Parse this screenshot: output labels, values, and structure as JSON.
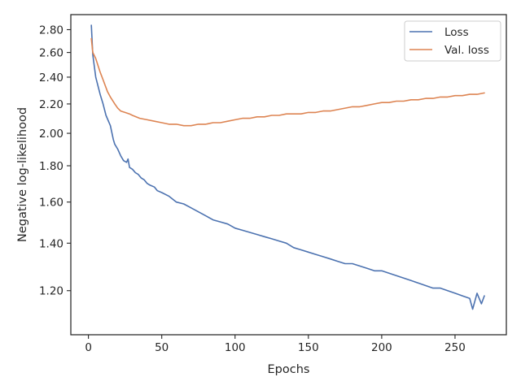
{
  "chart_data": {
    "type": "line",
    "title": "",
    "xlabel": "Epochs",
    "ylabel": "Negative log-likelihood",
    "xlim": [
      -12,
      285
    ],
    "ylim": [
      1.04,
      2.94
    ],
    "y_scale": "log",
    "x_ticks": [
      0,
      50,
      100,
      150,
      200,
      250
    ],
    "x_tick_labels": [
      "0",
      "50",
      "100",
      "150",
      "200",
      "250"
    ],
    "y_ticks": [
      1.2,
      1.4,
      1.6,
      1.8,
      2.0,
      2.2,
      2.4,
      2.6,
      2.8
    ],
    "y_tick_labels": [
      "1.20",
      "1.40",
      "1.60",
      "1.80",
      "2.00",
      "2.20",
      "2.40",
      "2.60",
      "2.80"
    ],
    "grid": false,
    "legend_position": "top-right",
    "series": [
      {
        "name": "Loss",
        "color": "#4c72b0",
        "x": [
          2,
          3,
          5,
          8,
          10,
          12,
          15,
          17,
          18,
          20,
          22,
          24,
          26,
          27,
          28,
          30,
          32,
          34,
          36,
          38,
          40,
          42,
          45,
          47,
          50,
          55,
          60,
          65,
          70,
          75,
          80,
          85,
          90,
          95,
          100,
          105,
          110,
          115,
          120,
          125,
          130,
          135,
          140,
          145,
          150,
          155,
          160,
          165,
          170,
          175,
          180,
          185,
          190,
          195,
          200,
          205,
          210,
          215,
          220,
          225,
          230,
          235,
          240,
          245,
          250,
          255,
          260,
          262,
          265,
          268,
          270
        ],
        "y": [
          2.84,
          2.58,
          2.4,
          2.27,
          2.2,
          2.12,
          2.05,
          1.96,
          1.93,
          1.9,
          1.86,
          1.83,
          1.82,
          1.84,
          1.79,
          1.78,
          1.76,
          1.75,
          1.73,
          1.72,
          1.7,
          1.69,
          1.68,
          1.66,
          1.65,
          1.63,
          1.6,
          1.59,
          1.57,
          1.55,
          1.53,
          1.51,
          1.5,
          1.49,
          1.47,
          1.46,
          1.45,
          1.44,
          1.43,
          1.42,
          1.41,
          1.4,
          1.38,
          1.37,
          1.36,
          1.35,
          1.34,
          1.33,
          1.32,
          1.31,
          1.31,
          1.3,
          1.29,
          1.28,
          1.28,
          1.27,
          1.26,
          1.25,
          1.24,
          1.23,
          1.22,
          1.21,
          1.21,
          1.2,
          1.19,
          1.18,
          1.17,
          1.13,
          1.19,
          1.15,
          1.18
        ]
      },
      {
        "name": "Val. loss",
        "color": "#dd8452",
        "x": [
          2,
          3,
          5,
          8,
          10,
          13,
          15,
          18,
          20,
          22,
          25,
          28,
          30,
          35,
          40,
          45,
          50,
          55,
          60,
          65,
          70,
          75,
          80,
          85,
          90,
          95,
          100,
          105,
          110,
          115,
          120,
          125,
          130,
          135,
          140,
          145,
          150,
          155,
          160,
          165,
          170,
          175,
          180,
          185,
          190,
          195,
          200,
          205,
          210,
          215,
          220,
          225,
          230,
          235,
          240,
          245,
          250,
          255,
          260,
          265,
          270
        ],
        "y": [
          2.72,
          2.6,
          2.55,
          2.44,
          2.38,
          2.29,
          2.25,
          2.2,
          2.17,
          2.15,
          2.14,
          2.13,
          2.12,
          2.1,
          2.09,
          2.08,
          2.07,
          2.06,
          2.06,
          2.05,
          2.05,
          2.06,
          2.06,
          2.07,
          2.07,
          2.08,
          2.09,
          2.1,
          2.1,
          2.11,
          2.11,
          2.12,
          2.12,
          2.13,
          2.13,
          2.13,
          2.14,
          2.14,
          2.15,
          2.15,
          2.16,
          2.17,
          2.18,
          2.18,
          2.19,
          2.2,
          2.21,
          2.21,
          2.22,
          2.22,
          2.23,
          2.23,
          2.24,
          2.24,
          2.25,
          2.25,
          2.26,
          2.26,
          2.27,
          2.27,
          2.28
        ]
      }
    ]
  }
}
